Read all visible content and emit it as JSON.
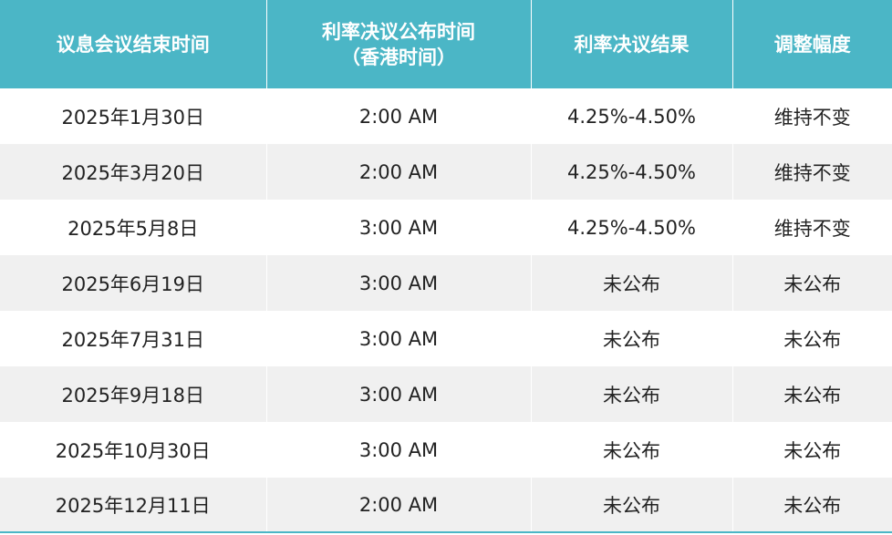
{
  "table": {
    "headers": [
      {
        "lines": [
          "议息会议结束时间"
        ]
      },
      {
        "lines": [
          "利率决议公布时间",
          "（香港时间）"
        ]
      },
      {
        "lines": [
          "利率决议结果"
        ]
      },
      {
        "lines": [
          "调整幅度"
        ]
      }
    ],
    "rows": [
      [
        "2025年1月30日",
        "2:00 AM",
        "4.25%-4.50%",
        "维持不变"
      ],
      [
        "2025年3月20日",
        "2:00 AM",
        "4.25%-4.50%",
        "维持不变"
      ],
      [
        "2025年5月8日",
        "3:00 AM",
        "4.25%-4.50%",
        "维持不变"
      ],
      [
        "2025年6月19日",
        "3:00 AM",
        "未公布",
        "未公布"
      ],
      [
        "2025年7月31日",
        "3:00 AM",
        "未公布",
        "未公布"
      ],
      [
        "2025年9月18日",
        "3:00 AM",
        "未公布",
        "未公布"
      ],
      [
        "2025年10月30日",
        "3:00 AM",
        "未公布",
        "未公布"
      ],
      [
        "2025年12月11日",
        "2:00 AM",
        "未公布",
        "未公布"
      ]
    ]
  },
  "colors": {
    "header_bg": "#4bb6c6",
    "header_text": "#ffffff",
    "row_alt_bg": "#f0f0f0",
    "row_bg": "#ffffff",
    "body_text": "#222222"
  }
}
